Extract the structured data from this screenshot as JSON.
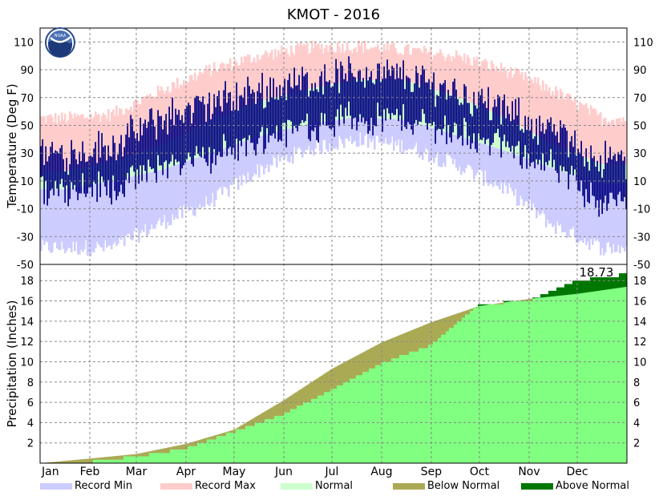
{
  "chart_data": [
    {
      "type": "area",
      "panel": "temperature",
      "title": "KMOT - 2016",
      "ylabel": "Temperature (Deg F)",
      "ylim": [
        -50,
        120
      ],
      "yticks": [
        -50,
        -30,
        -10,
        10,
        30,
        50,
        70,
        90,
        110
      ],
      "grid": true,
      "logo_text": "NOAA",
      "months": [
        "Jan",
        "Feb",
        "Mar",
        "Apr",
        "May",
        "Jun",
        "Jul",
        "Aug",
        "Sep",
        "Oct",
        "Nov",
        "Dec"
      ],
      "series": [
        {
          "name": "Record Min",
          "color": "#ccccff",
          "month_values": [
            -38,
            -38,
            -20,
            -5,
            18,
            33,
            40,
            35,
            22,
            5,
            -22,
            -38
          ]
        },
        {
          "name": "Record Max",
          "color": "#ffcccc",
          "month_values": [
            55,
            58,
            75,
            90,
            100,
            106,
            107,
            104,
            100,
            90,
            75,
            55
          ]
        },
        {
          "name": "Normal",
          "color": "#ccffcc",
          "low_month_values": [
            4,
            10,
            18,
            30,
            42,
            51,
            56,
            54,
            43,
            32,
            19,
            8
          ],
          "high_month_values": [
            17,
            24,
            36,
            53,
            67,
            76,
            83,
            82,
            71,
            56,
            36,
            22
          ]
        },
        {
          "name": "Observed",
          "color": "#000080",
          "month_lows": [
            5,
            5,
            20,
            28,
            40,
            50,
            55,
            54,
            45,
            35,
            20,
            -5
          ],
          "month_highs": [
            30,
            35,
            55,
            65,
            75,
            82,
            88,
            85,
            75,
            60,
            45,
            25
          ]
        }
      ]
    },
    {
      "type": "area",
      "panel": "precipitation",
      "ylabel": "Precipitation (Inches)",
      "ylim": [
        0,
        19.6
      ],
      "yticks": [
        2,
        4,
        6,
        8,
        10,
        12,
        14,
        16,
        18
      ],
      "grid": true,
      "annotation": "18.73",
      "x": [
        0,
        31,
        60,
        91,
        121,
        152,
        182,
        213,
        244,
        274,
        305,
        335,
        366
      ],
      "normal": [
        0.0,
        0.45,
        0.9,
        1.9,
        3.3,
        6.2,
        9.3,
        11.9,
        13.9,
        15.5,
        16.2,
        16.7,
        17.4
      ],
      "actual": [
        0.0,
        0.3,
        0.8,
        1.6,
        3.3,
        5.0,
        7.4,
        10.0,
        11.8,
        15.8,
        16.2,
        18.2,
        18.73
      ],
      "legend": [
        {
          "name": "Record Min",
          "color": "#ccccff"
        },
        {
          "name": "Record Max",
          "color": "#ffcccc"
        },
        {
          "name": "Normal",
          "color": "#ccffcc"
        },
        {
          "name": "Below Normal",
          "color": "#aaaa55"
        },
        {
          "name": "Above Normal",
          "color": "#007700"
        }
      ]
    }
  ]
}
